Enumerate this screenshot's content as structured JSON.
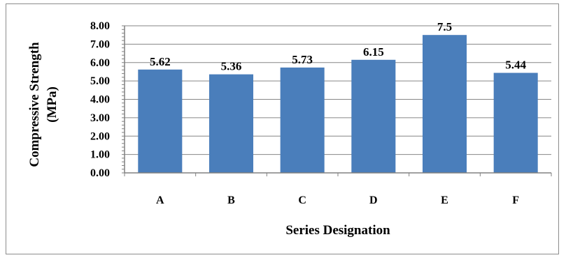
{
  "chart_data": {
    "type": "bar",
    "categories": [
      "A",
      "B",
      "C",
      "D",
      "E",
      "F"
    ],
    "values": [
      5.62,
      5.36,
      5.73,
      6.15,
      7.5,
      5.44
    ],
    "data_labels": [
      "5.62",
      "5.36",
      "5.73",
      "6.15",
      "7.5",
      "5.44"
    ],
    "title": "",
    "xlabel": "Series Designation",
    "ylabel_line1": "Compressive Strength",
    "ylabel_line2": "(MPa)",
    "ylim": [
      0,
      8
    ],
    "yticks": [
      "0.00",
      "1.00",
      "2.00",
      "3.00",
      "4.00",
      "5.00",
      "6.00",
      "7.00",
      "8.00"
    ],
    "grid": true,
    "legend": "none",
    "bar_color": "#4a7ebb",
    "grid_color": "#868686"
  }
}
